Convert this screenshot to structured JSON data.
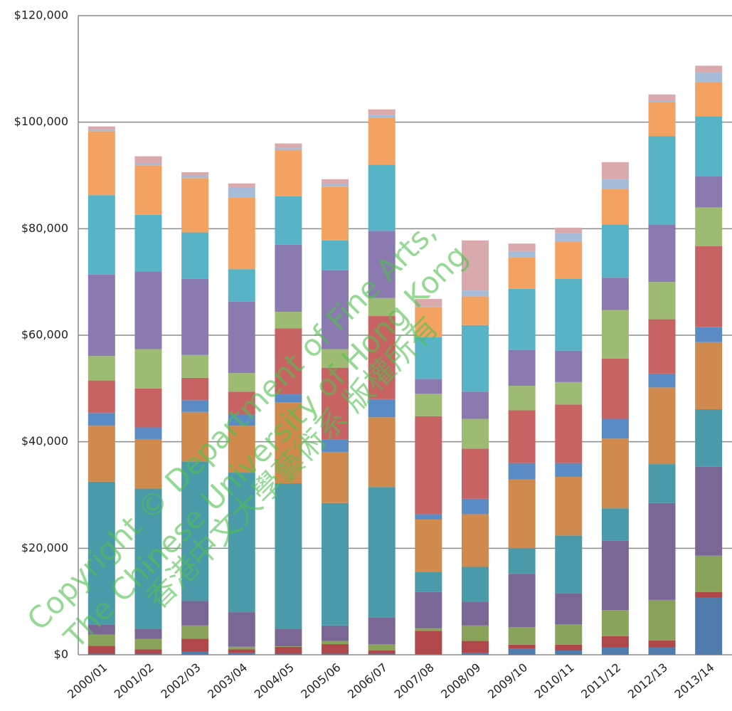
{
  "chart_data": {
    "type": "stacked_bar",
    "categories": [
      "2000/01",
      "2001/02",
      "2002/03",
      "2003/04",
      "2004/05",
      "2005/06",
      "2006/07",
      "2007/08",
      "2008/09",
      "2009/10",
      "2010/11",
      "2011/12",
      "2012/13",
      "2013/14"
    ],
    "series": [
      {
        "color": "#4f7cac",
        "values": [
          200,
          200,
          600,
          300,
          200,
          200,
          200,
          100,
          300,
          1100,
          800,
          1400,
          1400,
          10700
        ]
      },
      {
        "color": "#b0484b",
        "values": [
          1500,
          800,
          2400,
          700,
          1300,
          1800,
          600,
          4400,
          2300,
          800,
          1100,
          2100,
          1300,
          1100
        ]
      },
      {
        "color": "#8aa35a",
        "values": [
          2100,
          2000,
          2500,
          500,
          100,
          600,
          1200,
          500,
          2900,
          3300,
          3800,
          4900,
          7600,
          6800
        ]
      },
      {
        "color": "#7a6796",
        "values": [
          1900,
          1900,
          4600,
          6500,
          3300,
          2900,
          5000,
          6800,
          4500,
          10000,
          5800,
          13000,
          18200,
          16700
        ]
      },
      {
        "color": "#4b9aaa",
        "values": [
          26800,
          26300,
          26200,
          26200,
          27300,
          23000,
          24500,
          3700,
          6500,
          4800,
          10900,
          6100,
          7300,
          10800
        ]
      },
      {
        "color": "#d18a4e",
        "values": [
          10500,
          9300,
          9300,
          8800,
          15200,
          9600,
          13100,
          9900,
          9900,
          12900,
          11000,
          13100,
          14400,
          12600
        ]
      },
      {
        "color": "#5b8bc4",
        "values": [
          2400,
          2200,
          2200,
          2100,
          1500,
          2300,
          3400,
          1000,
          2900,
          3100,
          2600,
          3700,
          2600,
          2800
        ]
      },
      {
        "color": "#c86364",
        "values": [
          6100,
          7300,
          4200,
          4300,
          12400,
          13500,
          15600,
          18400,
          9400,
          9900,
          11000,
          11300,
          10200,
          15200
        ]
      },
      {
        "color": "#9dbb72",
        "values": [
          4600,
          7400,
          4300,
          3500,
          3100,
          3500,
          3400,
          4200,
          5600,
          4600,
          4200,
          9100,
          7000,
          7300
        ]
      },
      {
        "color": "#8b7ab0",
        "values": [
          15300,
          14600,
          14300,
          13400,
          12600,
          14800,
          12600,
          2800,
          5100,
          6700,
          5900,
          6100,
          10800,
          5800
        ]
      },
      {
        "color": "#58b3c6",
        "values": [
          14900,
          10600,
          8700,
          6100,
          9100,
          5600,
          12400,
          7800,
          12500,
          11500,
          13500,
          10000,
          16600,
          11300
        ]
      },
      {
        "color": "#f4a261",
        "values": [
          12000,
          9300,
          10200,
          13400,
          8700,
          10100,
          8800,
          5700,
          5400,
          5900,
          6900,
          6600,
          6300,
          6400
        ]
      },
      {
        "color": "#a7bcd8",
        "values": [
          300,
          300,
          500,
          2000,
          400,
          500,
          600,
          100,
          1100,
          1200,
          1700,
          1900,
          400,
          1800
        ]
      },
      {
        "color": "#d9a9ab",
        "values": [
          600,
          1400,
          600,
          700,
          800,
          900,
          1000,
          1400,
          9400,
          1400,
          1000,
          3200,
          1100,
          1300
        ]
      }
    ],
    "ylim": [
      0,
      120000
    ],
    "yticks": [
      {
        "value": 0,
        "label": "$0"
      },
      {
        "value": 20000,
        "label": "$20,000"
      },
      {
        "value": 40000,
        "label": "$40,000"
      },
      {
        "value": 60000,
        "label": "$60,000"
      },
      {
        "value": 80000,
        "label": "$80,000"
      },
      {
        "value": 100000,
        "label": "$100,000"
      },
      {
        "value": 120000,
        "label": "$120,000"
      }
    ],
    "grid": true,
    "annotations": [
      "Copyright © Department of Fine Arts,",
      "The Chinese University of Hong Kong",
      "香港中文大學藝術系 版權所有"
    ]
  }
}
